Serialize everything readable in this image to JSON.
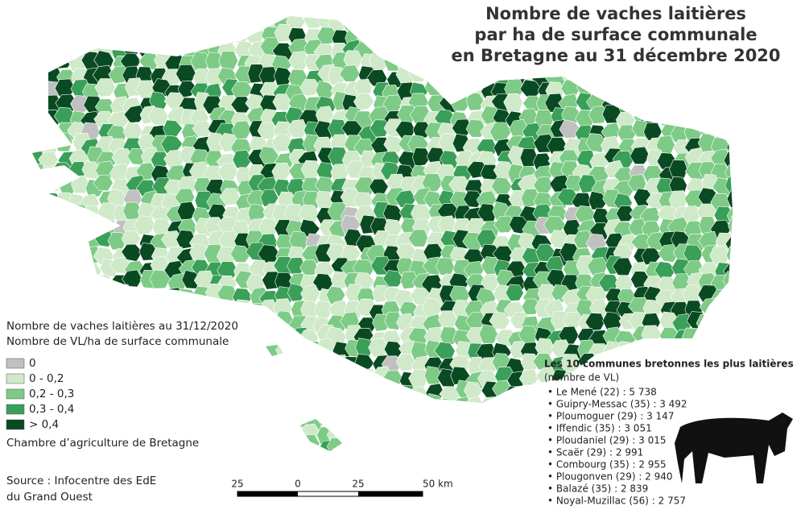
{
  "title": [
    "Nombre de vaches laitières",
    "par ha de surface communale",
    "en Bretagne au 31 décembre 2020"
  ],
  "legend": {
    "title": [
      "Nombre de vaches laitières au 31/12/2020",
      "Nombre de VL/ha de surface communale"
    ],
    "items": [
      {
        "label": "0",
        "color": "#c0c0c0"
      },
      {
        "label": "0 - 0,2",
        "color": "#cfe9c9"
      },
      {
        "label": "0,2 - 0,3",
        "color": "#7dcb86"
      },
      {
        "label": "0,3 - 0,4",
        "color": "#3a9f58"
      },
      {
        "label": "> 0,4",
        "color": "#0a4a22"
      }
    ],
    "credit": "Chambre d’agriculture de Bretagne"
  },
  "source": [
    "Source : Infocentre des EdE",
    "du Grand Ouest"
  ],
  "top_list": {
    "title": "Les 10 communes bretonnes les plus laitières",
    "subtitle": "(nombre de VL)",
    "items": [
      "• Le Mené (22) : 5 738",
      "• Guipry-Messac (35) : 3 492",
      "• Ploumoguer (29) : 3 147",
      "• Iffendic (35) : 3 051",
      "• Ploudaniel (29) : 3 015",
      "• Scaër (29) : 2 991",
      "• Combourg (35) : 2 955",
      "• Plougonven (29) : 2 940",
      "• Balazé (35) : 2 839",
      "• Noyal-Muzillac (56) : 2 757"
    ]
  },
  "scale": [
    "25",
    "0",
    "25",
    "50 km"
  ]
}
